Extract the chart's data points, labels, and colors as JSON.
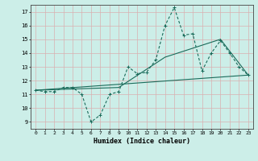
{
  "xlabel": "Humidex (Indice chaleur)",
  "bg_color": "#cceee8",
  "grid_color": "#d9b0b0",
  "line_color": "#1a6b5a",
  "ylim": [
    8.5,
    17.5
  ],
  "xlim": [
    -0.5,
    23.5
  ],
  "yticks": [
    9,
    10,
    11,
    12,
    13,
    14,
    15,
    16,
    17
  ],
  "xticks": [
    0,
    1,
    2,
    3,
    4,
    5,
    6,
    7,
    8,
    9,
    10,
    11,
    12,
    13,
    14,
    15,
    16,
    17,
    18,
    19,
    20,
    21,
    22,
    23
  ],
  "line1_x": [
    0,
    1,
    2,
    3,
    4,
    5,
    6,
    7,
    8,
    9,
    10,
    11,
    12,
    13,
    14,
    15,
    16,
    17,
    18,
    19,
    20,
    21,
    22,
    23
  ],
  "line1_y": [
    11.3,
    11.2,
    11.2,
    11.5,
    11.5,
    11.0,
    9.0,
    9.5,
    11.0,
    11.2,
    13.0,
    12.5,
    12.6,
    13.5,
    16.0,
    17.3,
    15.3,
    15.4,
    12.7,
    14.0,
    14.9,
    14.0,
    13.0,
    12.4
  ],
  "line2_x": [
    0,
    23
  ],
  "line2_y": [
    11.3,
    12.4
  ],
  "line3_x": [
    0,
    9,
    14,
    20,
    23
  ],
  "line3_y": [
    11.3,
    11.5,
    13.7,
    15.0,
    12.4
  ],
  "figsize": [
    3.2,
    2.0
  ],
  "dpi": 100
}
